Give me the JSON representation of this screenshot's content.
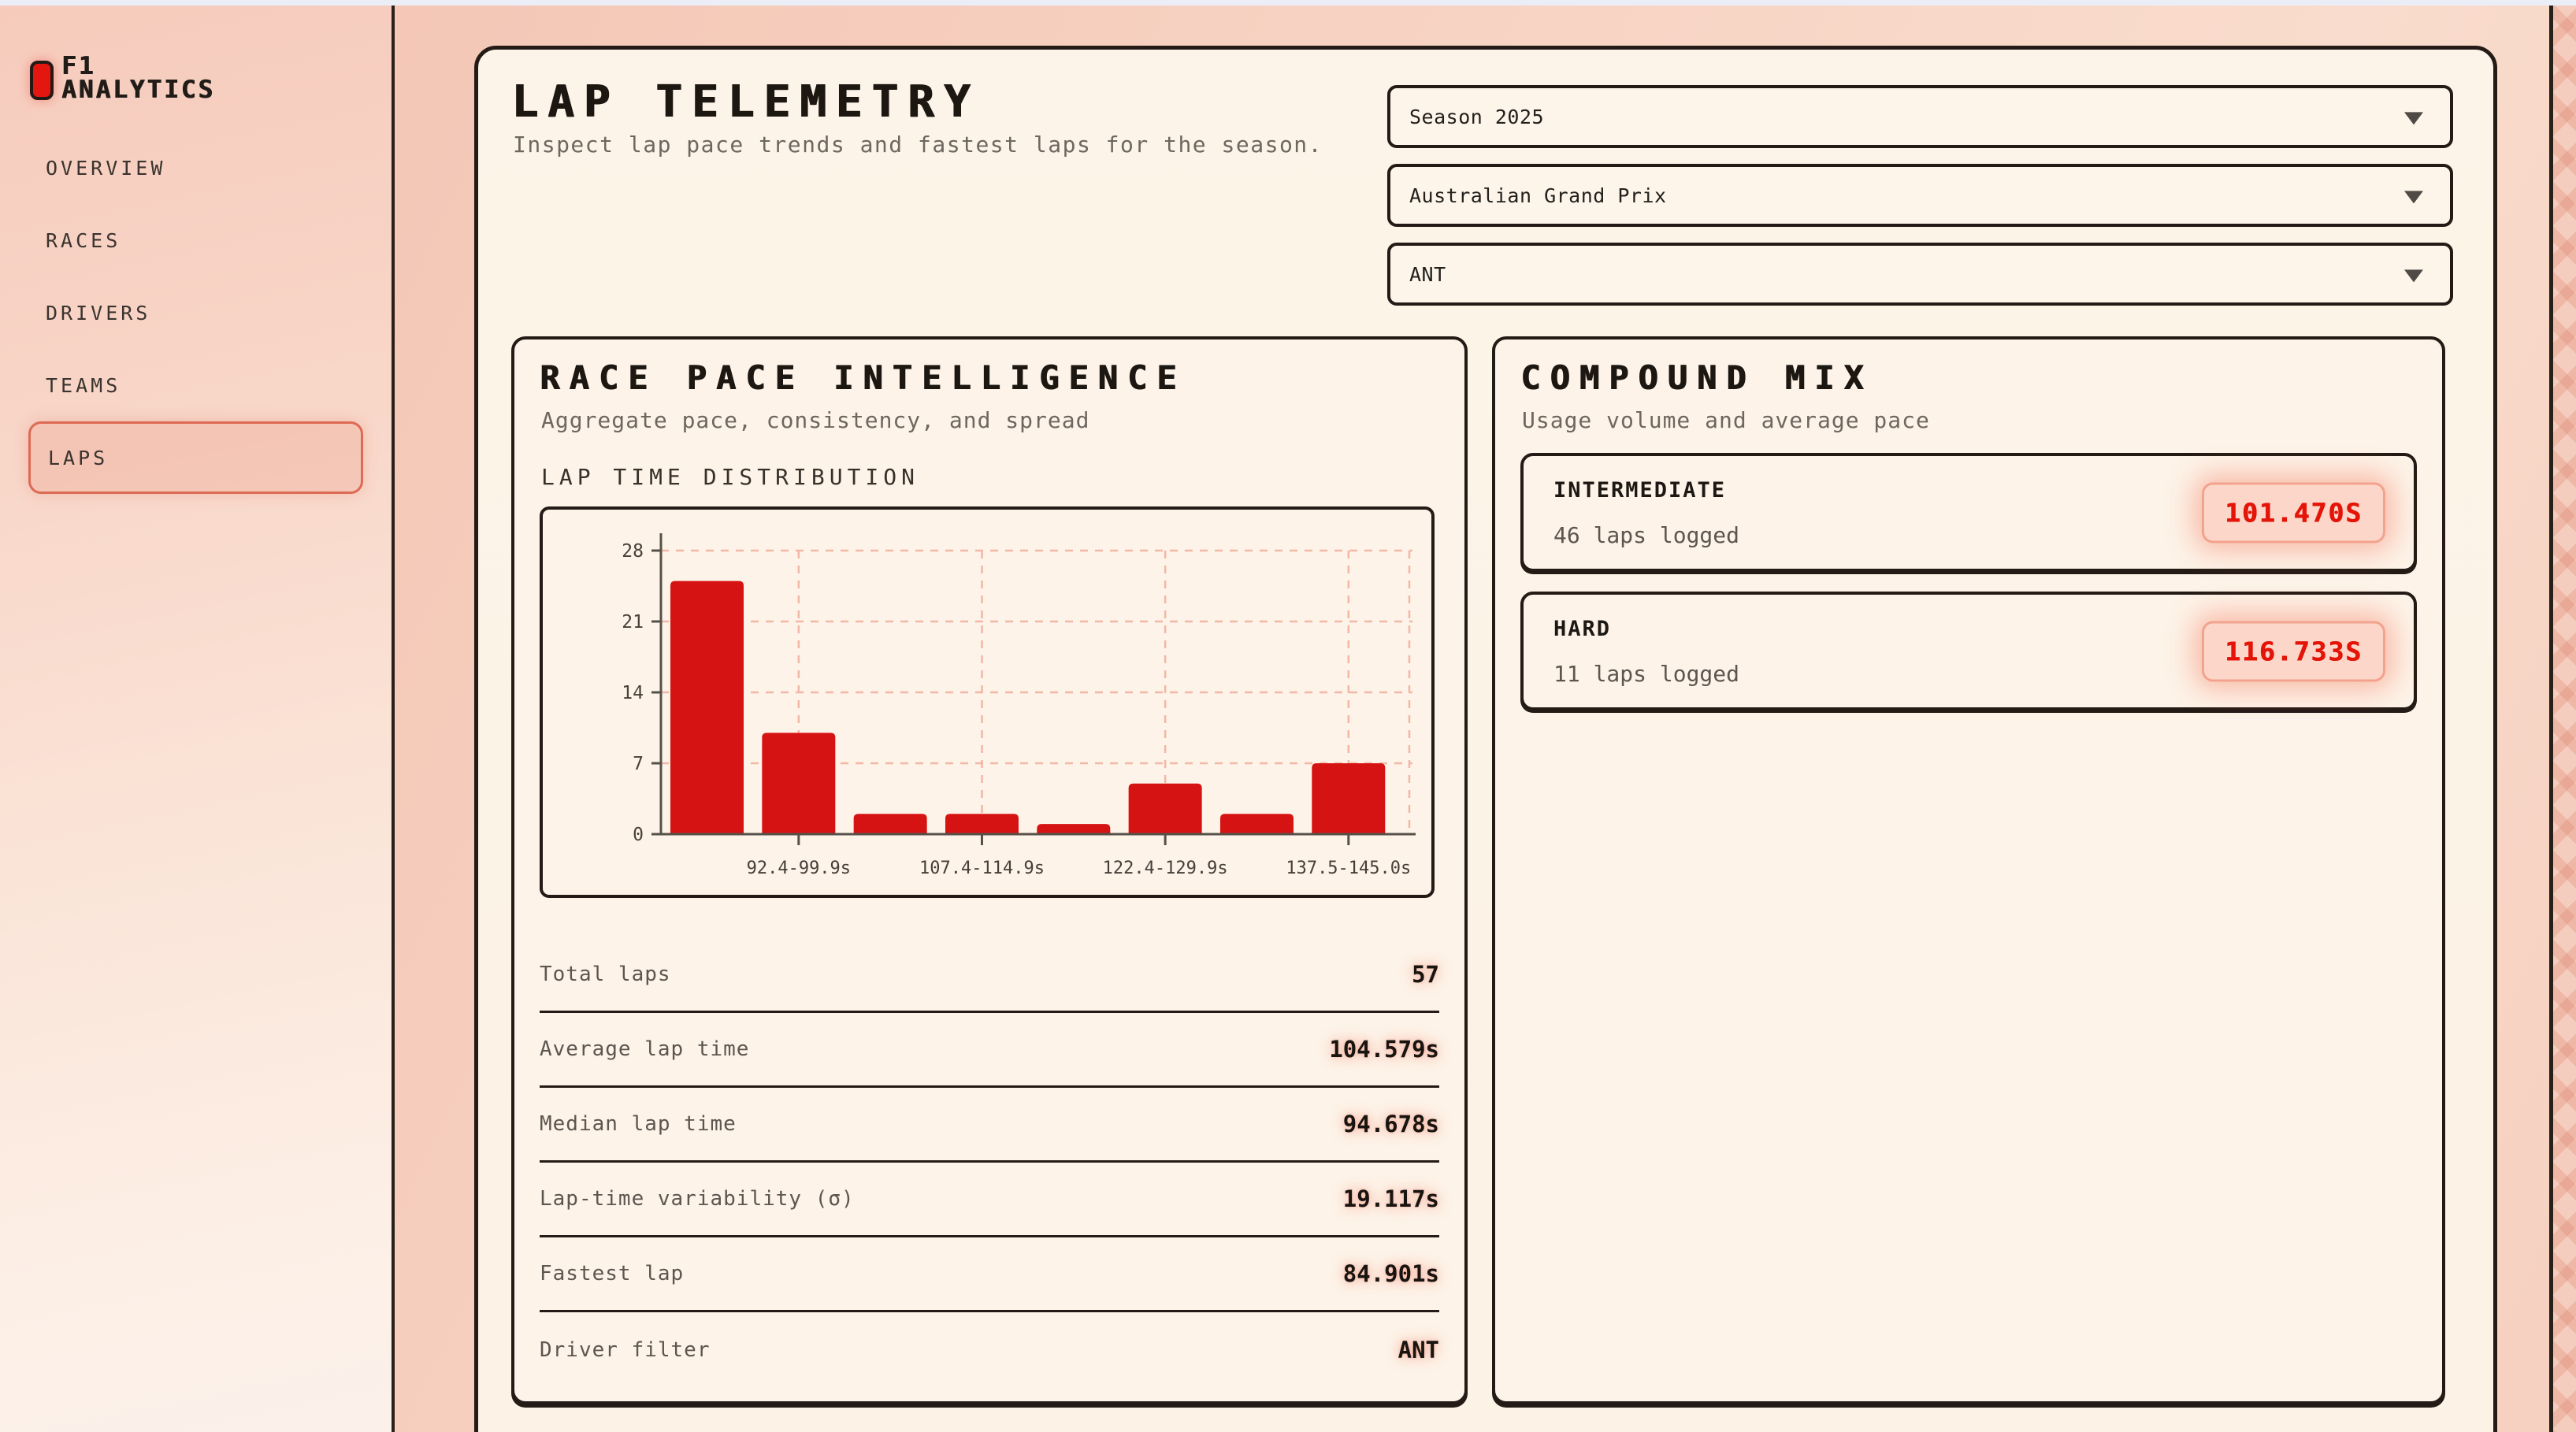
{
  "sidebar": {
    "logo": {
      "line1": "F1",
      "line2": "ANALYTICS"
    },
    "items": [
      {
        "label": "OVERVIEW",
        "active": false
      },
      {
        "label": "RACES",
        "active": false
      },
      {
        "label": "DRIVERS",
        "active": false
      },
      {
        "label": "TEAMS",
        "active": false
      },
      {
        "label": "LAPS",
        "active": true
      }
    ]
  },
  "header": {
    "title": "LAP TELEMETRY",
    "subtitle": "Inspect lap pace trends and fastest laps for the season.",
    "filters": [
      {
        "name": "season-select",
        "value": "Season 2025"
      },
      {
        "name": "race-select",
        "value": "Australian Grand Prix"
      },
      {
        "name": "driver-select",
        "value": "ANT"
      }
    ]
  },
  "race_pace": {
    "title": "RACE PACE INTELLIGENCE",
    "subtitle": "Aggregate pace, consistency, and spread",
    "chart_label": "LAP TIME DISTRIBUTION",
    "stats": [
      {
        "label": "Total laps",
        "value": "57"
      },
      {
        "label": "Average lap time",
        "value": "104.579s"
      },
      {
        "label": "Median lap time",
        "value": "94.678s"
      },
      {
        "label": "Lap-time variability (σ)",
        "value": "19.117s"
      },
      {
        "label": "Fastest lap",
        "value": "84.901s"
      },
      {
        "label": "Driver filter",
        "value": "ANT"
      }
    ]
  },
  "compound_mix": {
    "title": "COMPOUND MIX",
    "subtitle": "Usage volume and average pace",
    "compounds": [
      {
        "name": "INTERMEDIATE",
        "laps": "46 laps logged",
        "avg_pace": "101.470S"
      },
      {
        "name": "HARD",
        "laps": "11 laps logged",
        "avg_pace": "116.733S"
      }
    ]
  },
  "chart_data": {
    "type": "bar",
    "title": "LAP TIME DISTRIBUTION",
    "values": [
      25,
      10,
      2,
      2,
      1,
      5,
      2,
      7
    ],
    "tick_labels": [
      "92.4-99.9s",
      "107.4-114.9s",
      "122.4-129.9s",
      "137.5-145.0s"
    ],
    "tick_bar_indices": [
      1,
      3,
      5,
      7
    ],
    "y_ticks": [
      0,
      7,
      14,
      21,
      28
    ],
    "ylim": [
      0,
      28
    ],
    "xlabel": "",
    "ylabel": "",
    "grid": "dashed",
    "legend": "none",
    "bar_color": "#d61313"
  },
  "colors": {
    "accent_red": "#d61313",
    "badge_text": "#e41408",
    "badge_bg": "#fcd7c9",
    "dark_border": "#241b16",
    "card_bg": "#fdf3e8",
    "active_pill_border": "#dd6a54",
    "grid_pink": "#f2b7a6"
  }
}
